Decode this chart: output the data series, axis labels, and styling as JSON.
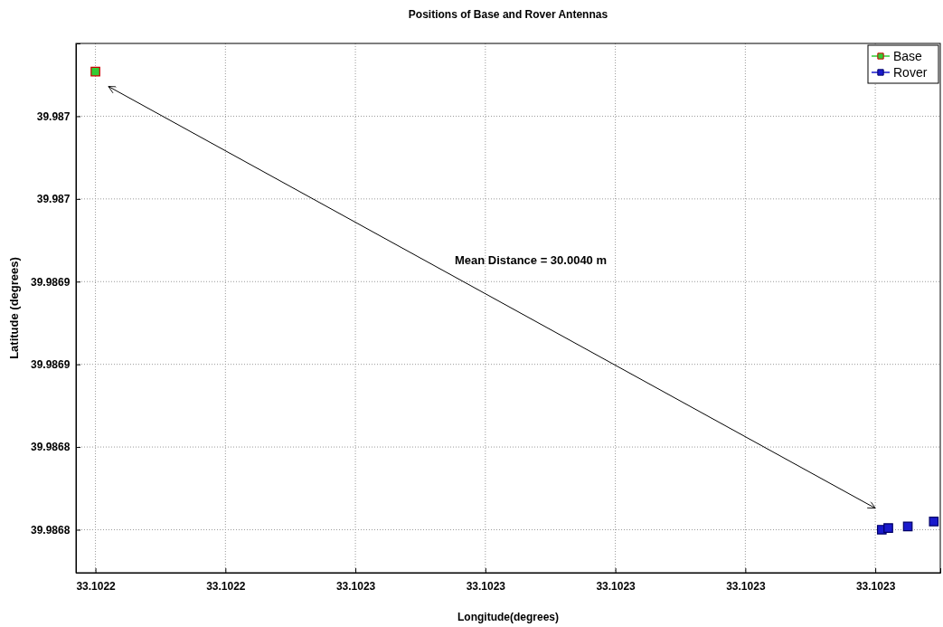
{
  "chart_data": {
    "type": "scatter",
    "title": "Positions of Base and Rover Antennas",
    "xlabel": "Longitude(degrees)",
    "ylabel": "Latitude (degrees)",
    "annotations": [
      "Mean Distance = 30.0040 m"
    ],
    "series": [
      {
        "name": "Base",
        "color": "#33cc33",
        "x": [
          33.10222
        ],
        "values": [
          39.987037
        ]
      },
      {
        "name": "Rover",
        "color": "#1a1acc",
        "x": [
          33.102341,
          33.102342,
          33.102345,
          33.102349
        ],
        "values": [
          39.98676,
          39.986761,
          39.986762,
          39.986765
        ]
      },
      {
        "type": "line",
        "marker": "none",
        "color": "#000000",
        "x": [
          33.102222,
          33.10234
        ],
        "values": [
          39.987028,
          39.986773
        ]
      }
    ],
    "xlim": [
      33.102217,
      33.10235
    ],
    "ylim": [
      39.986734,
      39.987054
    ],
    "xticks": [
      {
        "value": 33.10222,
        "label": "33.1022"
      },
      {
        "value": 33.10224,
        "label": "33.1022"
      },
      {
        "value": 33.10226,
        "label": "33.1023"
      },
      {
        "value": 33.10228,
        "label": "33.1023"
      },
      {
        "value": 33.1023,
        "label": "33.1023"
      },
      {
        "value": 33.10232,
        "label": "33.1023"
      },
      {
        "value": 33.10234,
        "label": "33.1023"
      }
    ],
    "yticks": [
      {
        "value": 39.98676,
        "label": "39.9868"
      },
      {
        "value": 39.98681,
        "label": "39.9868"
      },
      {
        "value": 39.98686,
        "label": "39.9869"
      },
      {
        "value": 39.98691,
        "label": "39.9869"
      },
      {
        "value": 39.98696,
        "label": "39.987"
      },
      {
        "value": 39.98701,
        "label": "39.987"
      }
    ],
    "grid": true,
    "legend": "top right",
    "marker": "square"
  }
}
